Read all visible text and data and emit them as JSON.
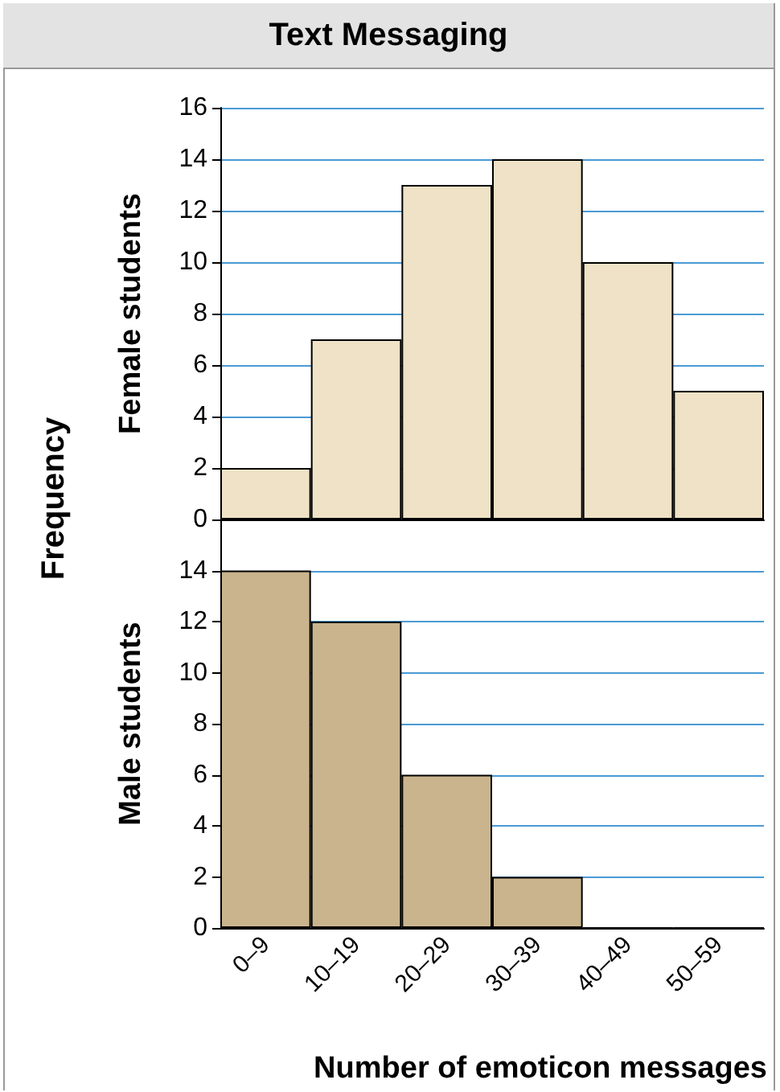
{
  "chart_data": [
    {
      "type": "bar",
      "title": "Text Messaging",
      "ylabel": "Female students",
      "annotations": [
        "Frequency"
      ],
      "categories": [
        null,
        null,
        null,
        null,
        null,
        null
      ],
      "series": [
        {
          "color": "#efe2c6",
          "values": [
            2,
            7,
            13,
            14,
            10,
            5
          ]
        }
      ],
      "ylim": [
        0,
        16
      ],
      "yticks": [
        0,
        2,
        4,
        6,
        8,
        10,
        12,
        14,
        16
      ],
      "grid": "y",
      "tick_labels": "y"
    },
    {
      "type": "bar",
      "ylabel": "Male students",
      "xlabel": "Number of emoticon messages",
      "categories": [
        "0–9",
        "10–19",
        "20–29",
        "30–39",
        "40–49",
        "50–59"
      ],
      "series": [
        {
          "color": "#c9b48d",
          "values": [
            14,
            12,
            6,
            2,
            0,
            0
          ]
        }
      ],
      "ylim": [
        0,
        16
      ],
      "yticks": [
        0,
        2,
        4,
        6,
        8,
        10,
        12,
        14
      ],
      "grid": "y"
    }
  ]
}
